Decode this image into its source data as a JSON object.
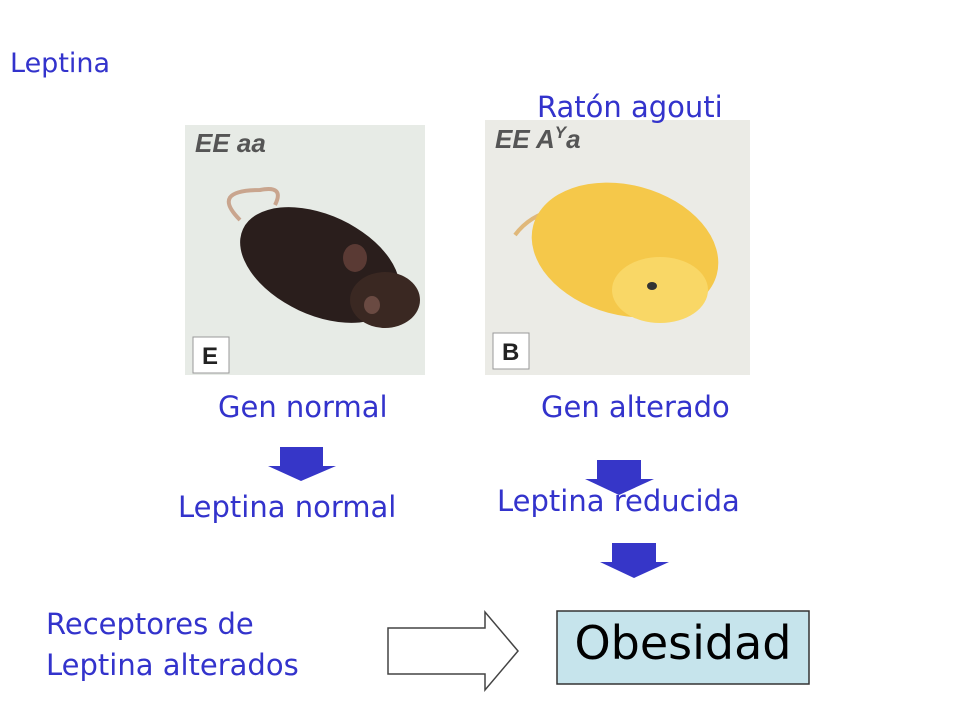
{
  "title": "Leptina",
  "subtitle": "Ratón agouti",
  "photos": [
    {
      "genotype": {
        "prefix": "EE aa",
        "sup": "",
        "suffix": ""
      },
      "panel": "E"
    },
    {
      "genotype": {
        "prefix": "EE A",
        "sup": "Y",
        "suffix": "a"
      },
      "panel": "B"
    }
  ],
  "left": {
    "gene": "Gen normal",
    "result": "Leptina normal"
  },
  "right": {
    "gene": "Gen alterado",
    "result": "Leptina reducida"
  },
  "receptors": [
    "Receptores de",
    "Leptina alterados"
  ],
  "outcome": "Obesidad"
}
